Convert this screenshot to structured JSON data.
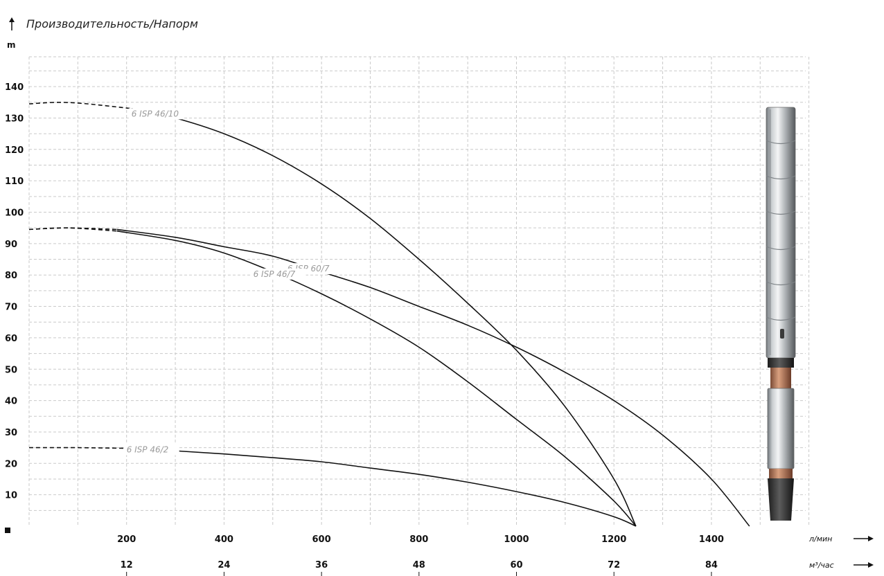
{
  "chart_data": {
    "type": "line",
    "title": "Производительность/Напорм",
    "ylabel": "m",
    "y_ticks": [
      10,
      20,
      30,
      40,
      50,
      60,
      70,
      80,
      90,
      100,
      110,
      120,
      130,
      140
    ],
    "ylim": [
      0,
      148
    ],
    "xlabel": "л/мин",
    "x_ticks": [
      200,
      400,
      600,
      800,
      1000,
      1200,
      1400
    ],
    "xlim": [
      0,
      1600
    ],
    "x2label": "м³/час",
    "x2_ticks": [
      12,
      24,
      36,
      48,
      60,
      72,
      84
    ],
    "grid": true,
    "series": [
      {
        "name": "6 ISP 46/10",
        "dashed_until": 210,
        "points": [
          [
            0,
            134.5
          ],
          [
            60,
            135
          ],
          [
            120,
            134.5
          ],
          [
            210,
            133
          ],
          [
            300,
            130
          ],
          [
            400,
            125
          ],
          [
            500,
            118
          ],
          [
            600,
            109
          ],
          [
            700,
            98
          ],
          [
            800,
            85
          ],
          [
            900,
            71
          ],
          [
            1000,
            56
          ],
          [
            1100,
            38
          ],
          [
            1200,
            15
          ],
          [
            1245,
            0
          ]
        ]
      },
      {
        "name": "6 ISP 60/7",
        "dashed_until": 180,
        "points": [
          [
            0,
            94.5
          ],
          [
            80,
            95
          ],
          [
            180,
            94.5
          ],
          [
            300,
            92
          ],
          [
            400,
            89
          ],
          [
            500,
            86
          ],
          [
            600,
            81
          ],
          [
            700,
            76
          ],
          [
            800,
            70
          ],
          [
            900,
            64
          ],
          [
            1000,
            57
          ],
          [
            1100,
            49
          ],
          [
            1200,
            40
          ],
          [
            1300,
            29
          ],
          [
            1400,
            15
          ],
          [
            1478,
            0
          ]
        ]
      },
      {
        "name": "6 ISP 46/7",
        "dashed_until": 180,
        "points": [
          [
            0,
            94.5
          ],
          [
            80,
            95
          ],
          [
            180,
            94
          ],
          [
            300,
            91
          ],
          [
            400,
            87
          ],
          [
            500,
            81
          ],
          [
            600,
            74
          ],
          [
            700,
            66
          ],
          [
            800,
            57
          ],
          [
            900,
            46
          ],
          [
            1000,
            34
          ],
          [
            1100,
            22
          ],
          [
            1200,
            8
          ],
          [
            1245,
            0
          ]
        ]
      },
      {
        "name": "6 ISP 46/2",
        "dashed_until": 200,
        "points": [
          [
            0,
            25
          ],
          [
            100,
            25
          ],
          [
            200,
            24.8
          ],
          [
            300,
            24
          ],
          [
            400,
            23
          ],
          [
            500,
            21.8
          ],
          [
            600,
            20.5
          ],
          [
            700,
            18.5
          ],
          [
            800,
            16.5
          ],
          [
            900,
            14
          ],
          [
            1000,
            11
          ],
          [
            1100,
            7.5
          ],
          [
            1200,
            3
          ],
          [
            1245,
            0
          ]
        ]
      }
    ]
  }
}
